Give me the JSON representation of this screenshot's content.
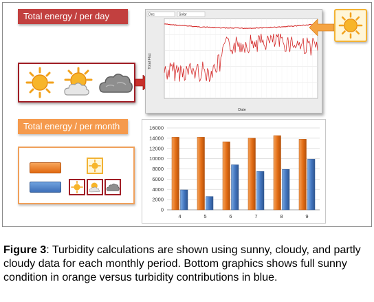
{
  "labels": {
    "daily": "Total energy / per day",
    "monthly": "Total energy / per month"
  },
  "icons": [
    "sun-icon",
    "partly-cloudy-icon",
    "cloud-icon",
    "arrow-right-icon",
    "arrow-left-icon"
  ],
  "colors": {
    "daily_label": "#c2403f",
    "monthly_label": "#f59a4d",
    "sunny_series": "#e8791f",
    "turbidity_series": "#4a7fc8",
    "daily_line": "#d42a2a"
  },
  "daily_chart": {
    "xlabel": "Date",
    "ylabel": "Total Flux",
    "header": [
      "Dec",
      "Solar"
    ]
  },
  "chart_data": {
    "type": "bar",
    "categories": [
      "4",
      "5",
      "6",
      "7",
      "8",
      "9"
    ],
    "series": [
      {
        "values": [
          14200,
          14200,
          13300,
          14000,
          14500,
          13800
        ]
      },
      {
        "values": [
          3900,
          2600,
          8800,
          7500,
          7900,
          9900
        ]
      }
    ],
    "ylim": [
      0,
      16000
    ],
    "yticks": [
      "0",
      "2000",
      "4000",
      "6000",
      "8000",
      "10000",
      "12000",
      "14000",
      "16000"
    ],
    "grid": true,
    "legend": "none"
  },
  "caption": {
    "label": "Figure 3",
    "text": ": Turbidity calculations are shown using sunny, cloudy, and partly cloudy data for each monthly period. Bottom graphics shows full sunny condition in orange versus turbidity contributions in blue."
  }
}
